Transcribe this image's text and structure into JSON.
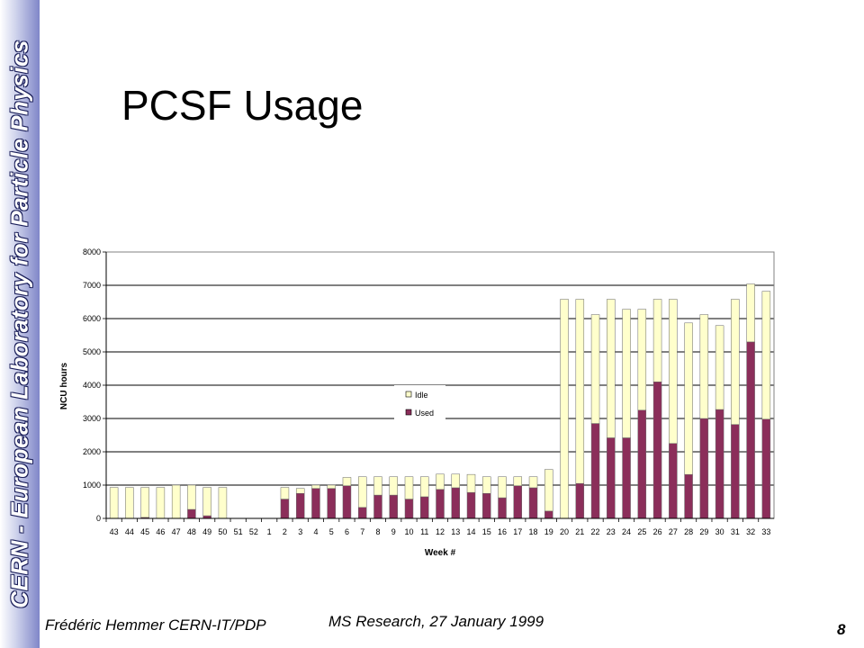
{
  "sidebar": {
    "text": "CERN - European Laboratory for Particle Physics"
  },
  "title": "PCSF Usage",
  "footer": {
    "author": "Frédéric Hemmer CERN-IT/PDP",
    "event": "MS Research, 27 January 1999",
    "page_number": "8"
  },
  "colors": {
    "idle": "#ffffcc",
    "used": "#8b2e5a",
    "bar_border": "#666666",
    "grid": "#000000"
  },
  "chart_data": {
    "type": "bar",
    "stacked": true,
    "title": "",
    "xlabel": "Week #",
    "ylabel": "NCU hours",
    "ylim": [
      0,
      8000
    ],
    "yticks": [
      0,
      1000,
      2000,
      3000,
      4000,
      5000,
      6000,
      7000,
      8000
    ],
    "grid": true,
    "legend_position": "center",
    "categories": [
      "43",
      "44",
      "45",
      "46",
      "47",
      "48",
      "49",
      "50",
      "51",
      "52",
      "1",
      "2",
      "3",
      "4",
      "5",
      "6",
      "7",
      "8",
      "9",
      "10",
      "11",
      "12",
      "13",
      "14",
      "15",
      "16",
      "17",
      "18",
      "19",
      "20",
      "21",
      "22",
      "23",
      "24",
      "25",
      "26",
      "27",
      "28",
      "29",
      "30",
      "31",
      "32",
      "33"
    ],
    "series": [
      {
        "name": "Used",
        "values": [
          0,
          0,
          30,
          0,
          0,
          270,
          80,
          0,
          0,
          0,
          0,
          580,
          750,
          900,
          900,
          980,
          330,
          700,
          700,
          580,
          650,
          870,
          920,
          780,
          750,
          620,
          980,
          920,
          220,
          0,
          1050,
          2850,
          2420,
          2420,
          3250,
          4100,
          2250,
          1320,
          3000,
          3270,
          2820,
          5300,
          2980
        ]
      },
      {
        "name": "Idle",
        "values": [
          930,
          930,
          900,
          930,
          1000,
          730,
          850,
          930,
          0,
          0,
          0,
          350,
          150,
          100,
          100,
          250,
          920,
          550,
          550,
          670,
          600,
          460,
          410,
          540,
          500,
          630,
          270,
          330,
          1250,
          6580,
          5530,
          3270,
          4160,
          3860,
          3030,
          2480,
          4330,
          4550,
          3120,
          2520,
          3760,
          1740,
          3840
        ]
      }
    ]
  }
}
